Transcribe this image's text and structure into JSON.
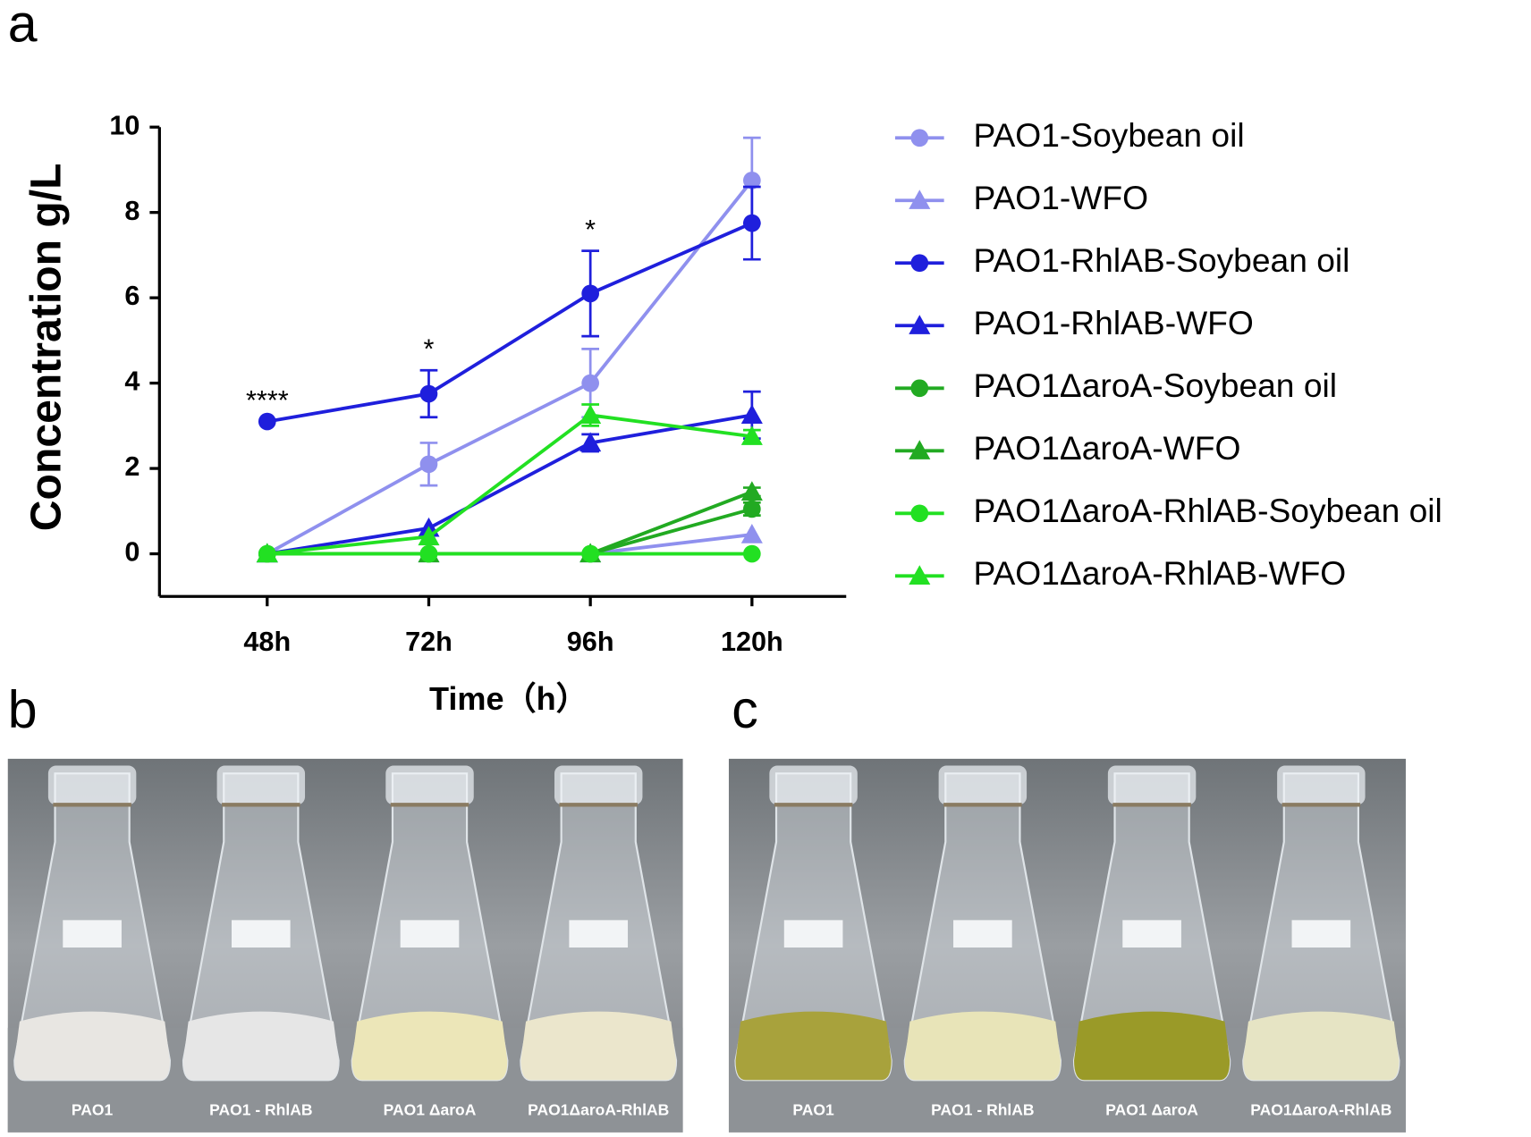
{
  "chart_data": {
    "type": "line",
    "panel_label": "a",
    "y_label": "Concentration g/L",
    "x_label": "Time（h）",
    "x": [
      48,
      72,
      96,
      120
    ],
    "xlim": [
      32,
      134
    ],
    "xticks": [
      {
        "value": 48,
        "label": "48h"
      },
      {
        "value": 72,
        "label": "72h"
      },
      {
        "value": 96,
        "label": "96h"
      },
      {
        "value": 120,
        "label": "120h"
      }
    ],
    "ylim": [
      -1,
      10
    ],
    "yticks": [
      0,
      2,
      4,
      6,
      8,
      10
    ],
    "series": [
      {
        "name": "PAO1-Soybean oil",
        "color": "#8f90ee",
        "marker": "circle",
        "values": [
          0,
          2.1,
          4.0,
          8.75
        ],
        "errors": [
          0,
          0.5,
          0.8,
          1.0
        ]
      },
      {
        "name": "PAO1-WFO",
        "color": "#8f90ee",
        "marker": "triangle",
        "values": [
          0,
          0,
          0,
          0.45
        ],
        "errors": [
          0,
          0,
          0,
          0
        ]
      },
      {
        "name": "PAO1-RhlAB-Soybean oil",
        "color": "#1f1fdc",
        "marker": "circle",
        "values": [
          3.1,
          3.75,
          6.1,
          7.75
        ],
        "errors": [
          0,
          0.55,
          1.0,
          0.85
        ]
      },
      {
        "name": "PAO1-RhlAB-WFO",
        "color": "#1f1fdc",
        "marker": "triangle",
        "values": [
          0,
          0.6,
          2.6,
          3.25
        ],
        "errors": [
          0,
          0,
          0.2,
          0.55
        ]
      },
      {
        "name": "PAO1ΔaroA-Soybean oil",
        "color": "#22aa22",
        "marker": "circle",
        "values": [
          0,
          0,
          0,
          1.05
        ],
        "errors": [
          0,
          0,
          0,
          0.15
        ]
      },
      {
        "name": "PAO1ΔaroA-WFO",
        "color": "#22aa22",
        "marker": "triangle",
        "values": [
          0,
          0,
          0,
          1.45
        ],
        "errors": [
          0,
          0,
          0,
          0.1
        ]
      },
      {
        "name": "PAO1ΔaroA-RhlAB-Soybean oil",
        "color": "#22e022",
        "marker": "circle",
        "values": [
          0,
          0,
          0,
          0
        ],
        "errors": [
          0,
          0,
          0,
          0
        ]
      },
      {
        "name": "PAO1ΔaroA-RhlAB-WFO",
        "color": "#22e022",
        "marker": "triangle",
        "values": [
          0,
          0.4,
          3.25,
          2.75
        ],
        "errors": [
          0,
          0,
          0.25,
          0.15
        ]
      }
    ],
    "annotations": [
      {
        "text": "****",
        "x": 48
      },
      {
        "text": "*",
        "x": 72
      },
      {
        "text": "*",
        "x": 96
      }
    ]
  },
  "photos": [
    {
      "label": "b",
      "flasks": [
        "PAO1",
        "PAO1 - RhlAB",
        "PAO1 ΔaroA",
        "PAO1ΔaroA-RhlAB"
      ]
    },
    {
      "label": "c",
      "flasks": [
        "PAO1",
        "PAO1 - RhlAB",
        "PAO1 ΔaroA",
        "PAO1ΔaroA-RhlAB"
      ]
    }
  ]
}
